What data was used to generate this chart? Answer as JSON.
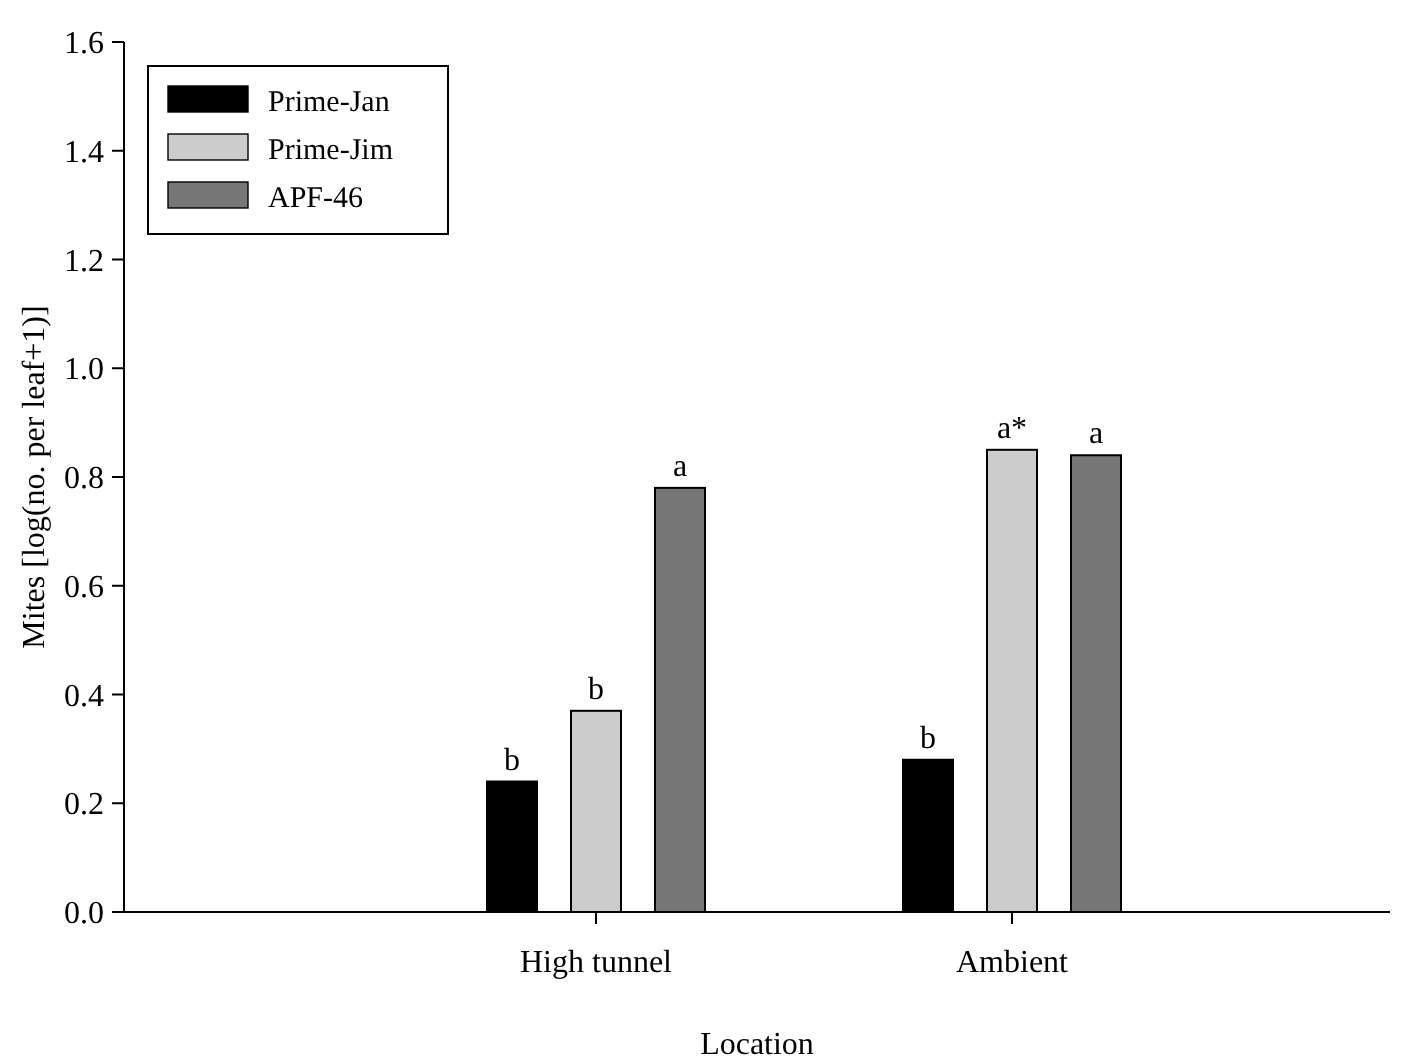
{
  "chart_data": {
    "type": "bar",
    "xlabel": "Location",
    "ylabel": "Mites [log(no. per leaf+1)]",
    "categories": [
      "High tunnel",
      "Ambient"
    ],
    "series": [
      {
        "name": "Prime-Jan",
        "color": "#000000",
        "values": [
          0.24,
          0.28
        ],
        "value_labels": [
          "b",
          "b"
        ]
      },
      {
        "name": "Prime-Jim",
        "color": "#cccccc",
        "values": [
          0.37,
          0.85
        ],
        "value_labels": [
          "b",
          "a*"
        ]
      },
      {
        "name": "APF-46",
        "color": "#777777",
        "values": [
          0.78,
          0.84
        ],
        "value_labels": [
          "a",
          "a"
        ]
      }
    ],
    "ylim": [
      0,
      1.6
    ],
    "yticks": [
      {
        "value": 0,
        "label": "0.0"
      },
      {
        "value": 0.2,
        "label": "0.2"
      },
      {
        "value": 0.4,
        "label": "0.4"
      },
      {
        "value": 0.6,
        "label": "0.6"
      },
      {
        "value": 0.8,
        "label": "0.8"
      },
      {
        "value": 1,
        "label": "1.0"
      },
      {
        "value": 1.2,
        "label": "1.2"
      },
      {
        "value": 1.4,
        "label": "1.4"
      },
      {
        "value": 1.6,
        "label": "1.6"
      }
    ],
    "grid": false,
    "legend": "top left"
  }
}
